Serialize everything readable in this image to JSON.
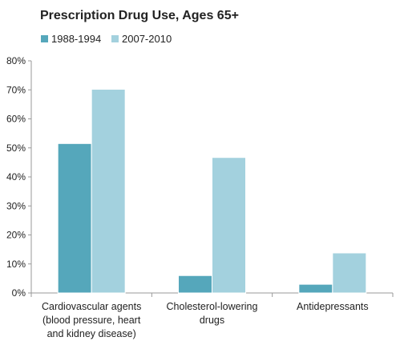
{
  "chart_data": {
    "type": "bar",
    "title": "Prescription Drug Use, Ages 65+",
    "xlabel": "",
    "ylabel": "",
    "categories": [
      [
        "Cardiovascular agents",
        "(blood pressure, heart",
        "and kidney disease)"
      ],
      [
        "Cholesterol-lowering",
        "drugs"
      ],
      [
        "Antidepressants"
      ]
    ],
    "series": [
      {
        "name": "1988-1994",
        "values": [
          51.5,
          6.0,
          3.0
        ],
        "color": "#55a7bb"
      },
      {
        "name": "2007-2010",
        "values": [
          70.2,
          46.7,
          13.8
        ],
        "color": "#a3d1de"
      }
    ],
    "ylim": [
      0,
      80
    ],
    "yticks": [
      "0%",
      "10%",
      "20%",
      "30%",
      "40%",
      "50%",
      "60%",
      "70%",
      "80%"
    ],
    "ytick_values": [
      0,
      10,
      20,
      30,
      40,
      50,
      60,
      70,
      80
    ],
    "grid": false,
    "legend_position": "top-left"
  }
}
